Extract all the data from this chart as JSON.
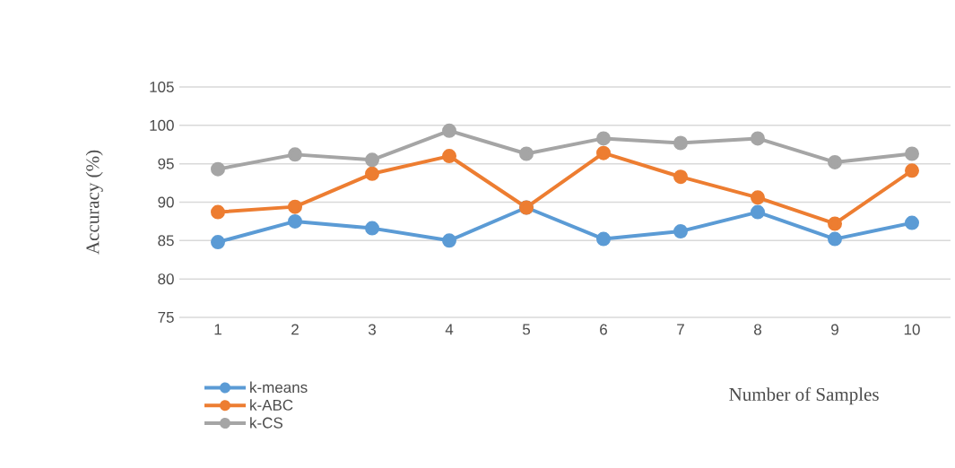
{
  "chart_data": {
    "type": "line",
    "xlabel": "Number of Samples",
    "ylabel": "Accuracy (%)",
    "categories": [
      "1",
      "2",
      "3",
      "4",
      "5",
      "6",
      "7",
      "8",
      "9",
      "10"
    ],
    "series": [
      {
        "name": "k-means",
        "color": "#5b9bd5",
        "values": [
          84.8,
          87.5,
          86.6,
          85.0,
          89.3,
          85.2,
          86.2,
          88.7,
          85.2,
          87.3
        ]
      },
      {
        "name": "k-ABC",
        "color": "#ed7d31",
        "values": [
          88.7,
          89.4,
          93.7,
          96.0,
          89.3,
          96.4,
          93.3,
          90.6,
          87.2,
          94.1
        ]
      },
      {
        "name": "k-CS",
        "color": "#a5a5a5",
        "values": [
          94.3,
          96.2,
          95.5,
          99.3,
          96.3,
          98.3,
          97.7,
          98.3,
          95.2,
          96.3
        ]
      }
    ],
    "ylim": [
      75,
      105
    ],
    "yticks": [
      75,
      80,
      85,
      90,
      95,
      100,
      105
    ],
    "grid": "y",
    "legend": "bottom left",
    "marker": "circle",
    "line_style": "solid"
  }
}
